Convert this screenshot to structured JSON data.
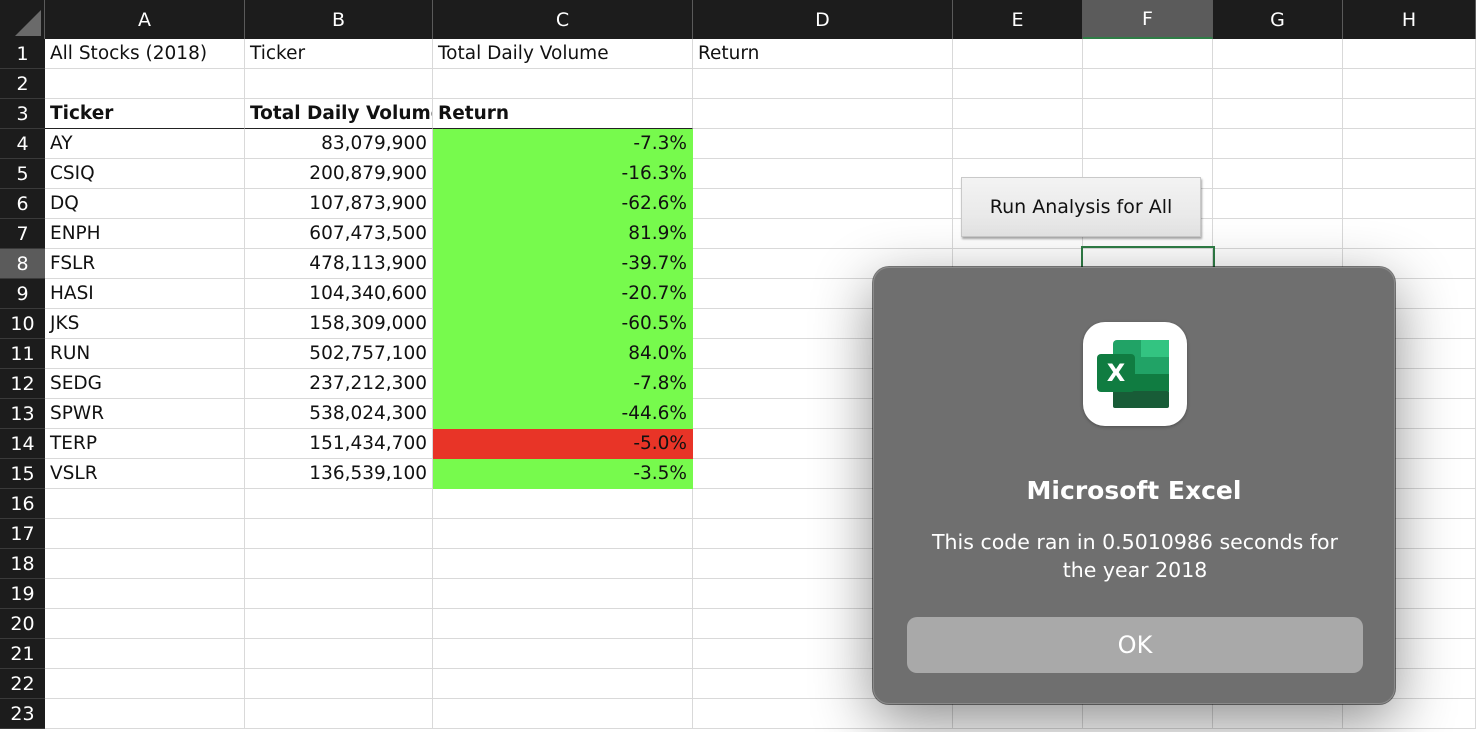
{
  "sheet": {
    "columns": [
      "A",
      "B",
      "C",
      "D",
      "E",
      "F",
      "G",
      "H"
    ],
    "selected_column": "F",
    "row_numbers": [
      "1",
      "2",
      "3",
      "4",
      "5",
      "6",
      "7",
      "8",
      "9",
      "10",
      "11",
      "12",
      "13",
      "14",
      "15",
      "16",
      "17",
      "18",
      "19",
      "20",
      "21",
      "22",
      "23"
    ],
    "selected_row": "8",
    "row1": {
      "a": "All Stocks (2018)",
      "b": "Ticker",
      "c": "Total Daily Volume",
      "d": "Return"
    },
    "table": {
      "headers": [
        "Ticker",
        "Total Daily Volume",
        "Return"
      ],
      "rows": [
        {
          "ticker": "AY",
          "volume": "83,079,900",
          "ret": "-7.3%",
          "fill": "#77fa4d"
        },
        {
          "ticker": "CSIQ",
          "volume": "200,879,900",
          "ret": "-16.3%",
          "fill": "#77fa4d"
        },
        {
          "ticker": "DQ",
          "volume": "107,873,900",
          "ret": "-62.6%",
          "fill": "#77fa4d"
        },
        {
          "ticker": "ENPH",
          "volume": "607,473,500",
          "ret": "81.9%",
          "fill": "#77fa4d"
        },
        {
          "ticker": "FSLR",
          "volume": "478,113,900",
          "ret": "-39.7%",
          "fill": "#77fa4d"
        },
        {
          "ticker": "HASI",
          "volume": "104,340,600",
          "ret": "-20.7%",
          "fill": "#77fa4d"
        },
        {
          "ticker": "JKS",
          "volume": "158,309,000",
          "ret": "-60.5%",
          "fill": "#77fa4d"
        },
        {
          "ticker": "RUN",
          "volume": "502,757,100",
          "ret": "84.0%",
          "fill": "#77fa4d"
        },
        {
          "ticker": "SEDG",
          "volume": "237,212,300",
          "ret": "-7.8%",
          "fill": "#77fa4d"
        },
        {
          "ticker": "SPWR",
          "volume": "538,024,300",
          "ret": "-44.6%",
          "fill": "#77fa4d"
        },
        {
          "ticker": "TERP",
          "volume": "151,434,700",
          "ret": "-5.0%",
          "fill": "#e83427"
        },
        {
          "ticker": "VSLR",
          "volume": "136,539,100",
          "ret": "-3.5%",
          "fill": "#77fa4d"
        }
      ]
    }
  },
  "button": {
    "label": "Run Analysis for All"
  },
  "dialog": {
    "app_icon": "excel-icon",
    "icon_letter": "X",
    "title": "Microsoft Excel",
    "message": "This code ran in 0.5010986 seconds for the year 2018",
    "ok_label": "OK"
  },
  "colors": {
    "header_bg": "#1c1c1c",
    "selected_header_bg": "#5b5b5b",
    "positive_fill": "#77fa4d",
    "negative_fill": "#e83427",
    "dialog_bg": "#6f6f6f",
    "ok_button_bg": "#a9a9a9",
    "selection_green": "#2f7d46"
  }
}
